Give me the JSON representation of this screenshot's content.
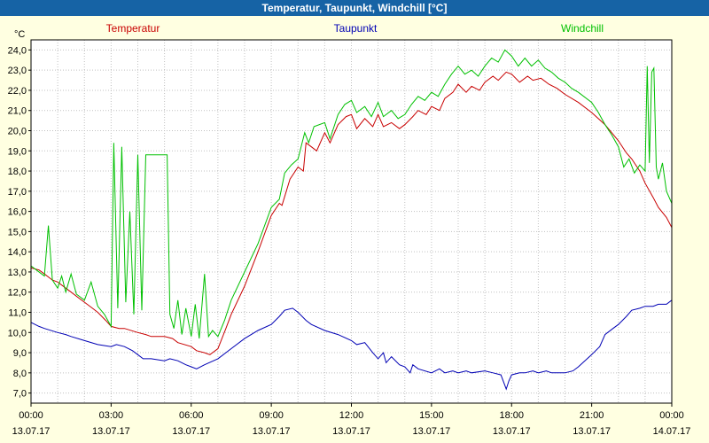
{
  "window_title": "Temperatur, Taupunkt, Windchill [°C]",
  "y_axis_unit": "°C",
  "chart_data": {
    "type": "line",
    "title": "Temperatur, Taupunkt, Windchill [°C]",
    "x_unit": "hours",
    "x_range": [
      0,
      24
    ],
    "y_range": [
      6.5,
      24.5
    ],
    "grid": "dotted",
    "legend_position": "top",
    "y_ticks": [
      {
        "v": 24,
        "label": "24,0"
      },
      {
        "v": 23,
        "label": "23,0"
      },
      {
        "v": 22,
        "label": "22,0"
      },
      {
        "v": 21,
        "label": "21,0"
      },
      {
        "v": 20,
        "label": "20,0"
      },
      {
        "v": 19,
        "label": "19,0"
      },
      {
        "v": 18,
        "label": "18,0"
      },
      {
        "v": 17,
        "label": "17,0"
      },
      {
        "v": 16,
        "label": "16,0"
      },
      {
        "v": 15,
        "label": "15,0"
      },
      {
        "v": 14,
        "label": "14,0"
      },
      {
        "v": 13,
        "label": "13,0"
      },
      {
        "v": 12,
        "label": "12,0"
      },
      {
        "v": 11,
        "label": "11,0"
      },
      {
        "v": 10,
        "label": "10,0"
      },
      {
        "v": 9,
        "label": "9,0"
      },
      {
        "v": 8,
        "label": "8,0"
      },
      {
        "v": 7,
        "label": "7,0"
      }
    ],
    "x_ticks": [
      {
        "h": 0,
        "time": "00:00",
        "date": "13.07.17"
      },
      {
        "h": 3,
        "time": "03:00",
        "date": "13.07.17"
      },
      {
        "h": 6,
        "time": "06:00",
        "date": "13.07.17"
      },
      {
        "h": 9,
        "time": "09:00",
        "date": "13.07.17"
      },
      {
        "h": 12,
        "time": "12:00",
        "date": "13.07.17"
      },
      {
        "h": 15,
        "time": "15:00",
        "date": "13.07.17"
      },
      {
        "h": 18,
        "time": "18:00",
        "date": "13.07.17"
      },
      {
        "h": 21,
        "time": "21:00",
        "date": "13.07.17"
      },
      {
        "h": 24,
        "time": "00:00",
        "date": "14.07.17"
      }
    ],
    "series": [
      {
        "name": "Temperatur",
        "color": "#c80000",
        "points": [
          [
            0,
            13.2
          ],
          [
            0.3,
            13.1
          ],
          [
            0.5,
            12.9
          ],
          [
            0.8,
            12.6
          ],
          [
            1,
            12.5
          ],
          [
            1.3,
            12.2
          ],
          [
            1.5,
            12.0
          ],
          [
            1.8,
            11.7
          ],
          [
            2,
            11.5
          ],
          [
            2.3,
            11.2
          ],
          [
            2.5,
            11.0
          ],
          [
            2.8,
            10.6
          ],
          [
            3,
            10.3
          ],
          [
            3.3,
            10.2
          ],
          [
            3.5,
            10.2
          ],
          [
            4,
            10.0
          ],
          [
            4.3,
            9.9
          ],
          [
            4.5,
            9.8
          ],
          [
            5,
            9.8
          ],
          [
            5.3,
            9.7
          ],
          [
            5.5,
            9.5
          ],
          [
            6,
            9.3
          ],
          [
            6.2,
            9.1
          ],
          [
            6.5,
            9.0
          ],
          [
            6.7,
            8.9
          ],
          [
            7,
            9.2
          ],
          [
            7.3,
            10.2
          ],
          [
            7.5,
            10.9
          ],
          [
            8,
            12.3
          ],
          [
            8.5,
            14.0
          ],
          [
            9,
            15.8
          ],
          [
            9.3,
            16.4
          ],
          [
            9.4,
            16.3
          ],
          [
            9.7,
            17.6
          ],
          [
            10,
            18.2
          ],
          [
            10.2,
            18.0
          ],
          [
            10.3,
            19.4
          ],
          [
            10.5,
            19.2
          ],
          [
            10.7,
            19.0
          ],
          [
            11,
            19.9
          ],
          [
            11.2,
            19.4
          ],
          [
            11.5,
            20.3
          ],
          [
            11.8,
            20.7
          ],
          [
            12,
            20.8
          ],
          [
            12.2,
            20.1
          ],
          [
            12.5,
            20.6
          ],
          [
            12.8,
            20.2
          ],
          [
            13,
            20.8
          ],
          [
            13.2,
            20.2
          ],
          [
            13.5,
            20.4
          ],
          [
            13.8,
            20.1
          ],
          [
            14,
            20.3
          ],
          [
            14.3,
            20.7
          ],
          [
            14.5,
            21.0
          ],
          [
            14.8,
            20.8
          ],
          [
            15,
            21.2
          ],
          [
            15.3,
            21.0
          ],
          [
            15.5,
            21.6
          ],
          [
            15.8,
            21.9
          ],
          [
            16,
            22.3
          ],
          [
            16.3,
            21.9
          ],
          [
            16.5,
            22.2
          ],
          [
            16.8,
            22.0
          ],
          [
            17,
            22.4
          ],
          [
            17.3,
            22.7
          ],
          [
            17.5,
            22.5
          ],
          [
            17.8,
            22.9
          ],
          [
            18,
            22.8
          ],
          [
            18.3,
            22.4
          ],
          [
            18.6,
            22.7
          ],
          [
            18.8,
            22.5
          ],
          [
            19.1,
            22.6
          ],
          [
            19.4,
            22.3
          ],
          [
            19.7,
            22.1
          ],
          [
            20,
            21.8
          ],
          [
            20.5,
            21.4
          ],
          [
            21,
            20.9
          ],
          [
            21.5,
            20.3
          ],
          [
            22,
            19.5
          ],
          [
            22.3,
            18.9
          ],
          [
            22.5,
            18.6
          ],
          [
            22.8,
            18.0
          ],
          [
            23,
            17.4
          ],
          [
            23.3,
            16.7
          ],
          [
            23.5,
            16.2
          ],
          [
            23.8,
            15.7
          ],
          [
            24,
            15.2
          ]
        ]
      },
      {
        "name": "Taupunkt",
        "color": "#0000b4",
        "points": [
          [
            0,
            10.5
          ],
          [
            0.3,
            10.3
          ],
          [
            0.5,
            10.2
          ],
          [
            1,
            10.0
          ],
          [
            1.3,
            9.9
          ],
          [
            1.5,
            9.8
          ],
          [
            2,
            9.6
          ],
          [
            2.5,
            9.4
          ],
          [
            3,
            9.3
          ],
          [
            3.2,
            9.4
          ],
          [
            3.5,
            9.3
          ],
          [
            3.8,
            9.1
          ],
          [
            4,
            8.9
          ],
          [
            4.2,
            8.7
          ],
          [
            4.5,
            8.7
          ],
          [
            5,
            8.6
          ],
          [
            5.2,
            8.7
          ],
          [
            5.5,
            8.6
          ],
          [
            5.8,
            8.4
          ],
          [
            6,
            8.3
          ],
          [
            6.2,
            8.2
          ],
          [
            6.5,
            8.4
          ],
          [
            7,
            8.7
          ],
          [
            7.5,
            9.2
          ],
          [
            8,
            9.7
          ],
          [
            8.5,
            10.1
          ],
          [
            9,
            10.4
          ],
          [
            9.3,
            10.8
          ],
          [
            9.5,
            11.1
          ],
          [
            9.8,
            11.2
          ],
          [
            10,
            11.0
          ],
          [
            10.3,
            10.6
          ],
          [
            10.5,
            10.4
          ],
          [
            11,
            10.1
          ],
          [
            11.5,
            9.9
          ],
          [
            12,
            9.6
          ],
          [
            12.2,
            9.4
          ],
          [
            12.5,
            9.5
          ],
          [
            12.8,
            9.0
          ],
          [
            13,
            8.7
          ],
          [
            13.2,
            9.0
          ],
          [
            13.3,
            8.5
          ],
          [
            13.5,
            8.8
          ],
          [
            13.8,
            8.4
          ],
          [
            14,
            8.3
          ],
          [
            14.2,
            8.0
          ],
          [
            14.3,
            8.4
          ],
          [
            14.5,
            8.2
          ],
          [
            15,
            8.0
          ],
          [
            15.3,
            8.2
          ],
          [
            15.5,
            8.0
          ],
          [
            15.8,
            8.1
          ],
          [
            16,
            8.0
          ],
          [
            16.3,
            8.1
          ],
          [
            16.5,
            8.0
          ],
          [
            17,
            8.1
          ],
          [
            17.3,
            8.0
          ],
          [
            17.6,
            7.9
          ],
          [
            17.8,
            7.2
          ],
          [
            17.9,
            7.6
          ],
          [
            18,
            7.9
          ],
          [
            18.3,
            8.0
          ],
          [
            18.5,
            8.0
          ],
          [
            18.8,
            8.1
          ],
          [
            19,
            8.0
          ],
          [
            19.3,
            8.1
          ],
          [
            19.5,
            8.0
          ],
          [
            20,
            8.0
          ],
          [
            20.3,
            8.1
          ],
          [
            20.5,
            8.3
          ],
          [
            21,
            8.9
          ],
          [
            21.3,
            9.3
          ],
          [
            21.5,
            9.9
          ],
          [
            21.8,
            10.2
          ],
          [
            22,
            10.4
          ],
          [
            22.3,
            10.8
          ],
          [
            22.5,
            11.1
          ],
          [
            22.8,
            11.2
          ],
          [
            23,
            11.3
          ],
          [
            23.3,
            11.3
          ],
          [
            23.5,
            11.4
          ],
          [
            23.8,
            11.4
          ],
          [
            24,
            11.6
          ]
        ]
      },
      {
        "name": "Windchill",
        "color": "#00c000",
        "points": [
          [
            0,
            13.3
          ],
          [
            0.2,
            13.1
          ],
          [
            0.5,
            12.8
          ],
          [
            0.65,
            15.3
          ],
          [
            0.8,
            12.6
          ],
          [
            1,
            12.2
          ],
          [
            1.15,
            12.8
          ],
          [
            1.3,
            12.0
          ],
          [
            1.5,
            12.9
          ],
          [
            1.7,
            11.9
          ],
          [
            2,
            11.6
          ],
          [
            2.25,
            12.5
          ],
          [
            2.5,
            11.3
          ],
          [
            2.75,
            10.9
          ],
          [
            3,
            10.3
          ],
          [
            3.1,
            19.4
          ],
          [
            3.25,
            11.2
          ],
          [
            3.4,
            19.2
          ],
          [
            3.55,
            11.5
          ],
          [
            3.7,
            16.0
          ],
          [
            3.85,
            10.9
          ],
          [
            4,
            18.8
          ],
          [
            4.15,
            11.1
          ],
          [
            4.3,
            18.8
          ],
          [
            5.1,
            18.8
          ],
          [
            5.2,
            10.9
          ],
          [
            5.35,
            10.2
          ],
          [
            5.5,
            11.6
          ],
          [
            5.65,
            9.9
          ],
          [
            5.8,
            11.2
          ],
          [
            6,
            9.8
          ],
          [
            6.15,
            11.4
          ],
          [
            6.3,
            9.7
          ],
          [
            6.5,
            12.9
          ],
          [
            6.65,
            9.8
          ],
          [
            6.8,
            10.1
          ],
          [
            7,
            9.8
          ],
          [
            7.25,
            10.6
          ],
          [
            7.5,
            11.6
          ],
          [
            8,
            13.0
          ],
          [
            8.5,
            14.4
          ],
          [
            9,
            16.2
          ],
          [
            9.3,
            16.6
          ],
          [
            9.5,
            17.9
          ],
          [
            9.75,
            18.3
          ],
          [
            10,
            18.6
          ],
          [
            10.25,
            19.9
          ],
          [
            10.4,
            19.4
          ],
          [
            10.6,
            20.2
          ],
          [
            11,
            20.4
          ],
          [
            11.2,
            19.6
          ],
          [
            11.5,
            20.8
          ],
          [
            11.75,
            21.3
          ],
          [
            12,
            21.5
          ],
          [
            12.2,
            20.9
          ],
          [
            12.5,
            21.2
          ],
          [
            12.75,
            20.7
          ],
          [
            13,
            21.4
          ],
          [
            13.2,
            20.7
          ],
          [
            13.5,
            21.0
          ],
          [
            13.75,
            20.6
          ],
          [
            14,
            20.8
          ],
          [
            14.25,
            21.3
          ],
          [
            14.5,
            21.7
          ],
          [
            14.75,
            21.5
          ],
          [
            15,
            21.9
          ],
          [
            15.25,
            21.7
          ],
          [
            15.5,
            22.3
          ],
          [
            15.75,
            22.8
          ],
          [
            16,
            23.2
          ],
          [
            16.25,
            22.8
          ],
          [
            16.5,
            23.0
          ],
          [
            16.75,
            22.7
          ],
          [
            17,
            23.2
          ],
          [
            17.25,
            23.6
          ],
          [
            17.5,
            23.4
          ],
          [
            17.75,
            24.0
          ],
          [
            18,
            23.7
          ],
          [
            18.25,
            23.2
          ],
          [
            18.5,
            23.6
          ],
          [
            18.75,
            23.2
          ],
          [
            19,
            23.5
          ],
          [
            19.25,
            23.1
          ],
          [
            19.5,
            22.9
          ],
          [
            19.75,
            22.6
          ],
          [
            20,
            22.4
          ],
          [
            20.25,
            22.1
          ],
          [
            20.5,
            21.9
          ],
          [
            21,
            21.4
          ],
          [
            21.25,
            20.9
          ],
          [
            21.5,
            20.3
          ],
          [
            21.75,
            19.8
          ],
          [
            22,
            19.2
          ],
          [
            22.2,
            18.2
          ],
          [
            22.4,
            18.6
          ],
          [
            22.6,
            17.9
          ],
          [
            22.8,
            18.3
          ],
          [
            23,
            18.0
          ],
          [
            23.08,
            23.2
          ],
          [
            23.16,
            18.4
          ],
          [
            23.25,
            22.9
          ],
          [
            23.33,
            23.1
          ],
          [
            23.42,
            18.2
          ],
          [
            23.5,
            17.6
          ],
          [
            23.65,
            18.4
          ],
          [
            23.8,
            17.0
          ],
          [
            24,
            16.4
          ]
        ]
      }
    ]
  }
}
